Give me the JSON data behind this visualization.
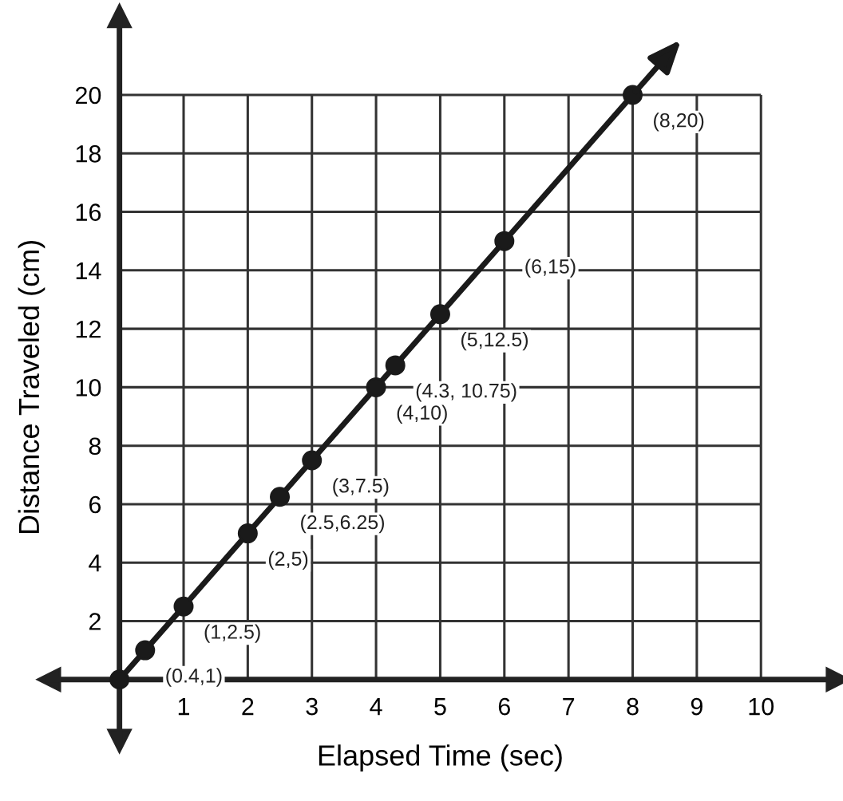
{
  "chart_data": {
    "type": "line",
    "xlabel": "Elapsed Time (sec)",
    "ylabel": "Distance Traveled (cm)",
    "x": [
      0,
      0.4,
      1,
      2,
      2.5,
      3,
      4,
      4.3,
      5,
      6,
      8
    ],
    "series": [
      {
        "color": "#1a1a1a",
        "values": [
          0,
          1,
          2.5,
          5,
          6.25,
          7.5,
          10,
          10.75,
          12.5,
          15,
          20
        ]
      }
    ],
    "marker": "circle",
    "line_style": "solid",
    "grid": true,
    "xlim": [
      -1.1,
      11.2
    ],
    "ylim": [
      -2.1,
      22.7
    ],
    "xticks": [
      1,
      2,
      3,
      4,
      5,
      6,
      7,
      8,
      9,
      10
    ],
    "yticks": [
      2,
      4,
      6,
      8,
      10,
      12,
      14,
      16,
      18,
      20
    ],
    "annotations": [
      {
        "text": "(0.4,1)",
        "x": 0.4,
        "y": 1
      },
      {
        "text": "(1,2.5)",
        "x": 1,
        "y": 2.5
      },
      {
        "text": "(2,5)",
        "x": 2,
        "y": 5
      },
      {
        "text": "(2.5,6.25)",
        "x": 2.5,
        "y": 6.25
      },
      {
        "text": "(3,7.5)",
        "x": 3,
        "y": 7.5
      },
      {
        "text": "(4,10)",
        "x": 4,
        "y": 10
      },
      {
        "text": "(4.3, 10.75)",
        "x": 4.3,
        "y": 10.75
      },
      {
        "text": "(5,12.5)",
        "x": 5,
        "y": 12.5
      },
      {
        "text": "(6,15)",
        "x": 6,
        "y": 15
      },
      {
        "text": "(8,20)",
        "x": 8,
        "y": 20
      }
    ]
  }
}
